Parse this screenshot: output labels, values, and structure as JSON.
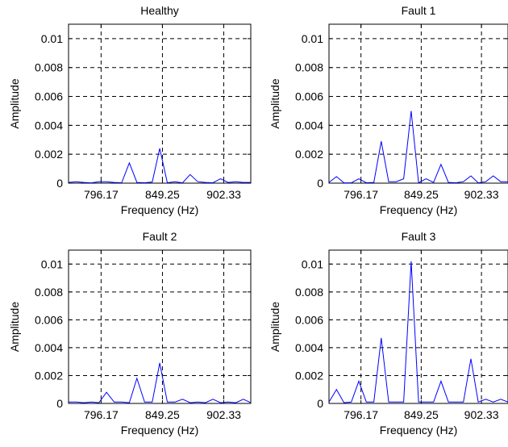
{
  "chart_data": [
    {
      "type": "line",
      "title": "Healthy",
      "xlabel": "Frequency (Hz)",
      "ylabel": "Amplitude",
      "x_ticks": [
        796.17,
        849.25,
        902.33
      ],
      "x_tick_labels": [
        "796.17",
        "849.25",
        "902.33"
      ],
      "y_ticks": [
        0,
        0.002,
        0.004,
        0.006,
        0.008,
        0.01
      ],
      "y_tick_labels": [
        "0",
        "0.002",
        "0.004",
        "0.006",
        "0.008",
        "0.01"
      ],
      "xlim": [
        768,
        925.7
      ],
      "ylim": [
        0,
        0.011
      ],
      "grid": true,
      "series": [
        {
          "color": "#0000ff",
          "x": [
            768,
            774.6,
            781.2,
            787.7,
            794.3,
            800.9,
            807.5,
            814,
            820.6,
            827.2,
            833.8,
            840.4,
            846.9,
            853.5,
            860.1,
            866.7,
            873.2,
            879.8,
            886.4,
            893,
            899.5,
            906.1,
            912.7,
            919.3,
            925.7
          ],
          "y": [
            5e-05,
            0.0001,
            5e-05,
            2e-05,
            0.0001,
            0.0001,
            5e-05,
            3e-05,
            0.0014,
            5e-05,
            3e-05,
            8e-05,
            0.0024,
            3e-05,
            0.0001,
            2e-05,
            0.0006,
            0.0001,
            5e-05,
            3e-05,
            0.0003,
            5e-05,
            0.0001,
            5e-05,
            5e-05
          ]
        }
      ]
    },
    {
      "type": "line",
      "title": "Fault 1",
      "xlabel": "Frequency (Hz)",
      "ylabel": "Amplitude",
      "x_ticks": [
        796.17,
        849.25,
        902.33
      ],
      "x_tick_labels": [
        "796.17",
        "849.25",
        "902.33"
      ],
      "y_ticks": [
        0,
        0.002,
        0.004,
        0.006,
        0.008,
        0.01
      ],
      "y_tick_labels": [
        "0",
        "0.002",
        "0.004",
        "0.006",
        "0.008",
        "0.01"
      ],
      "xlim": [
        768,
        925.7
      ],
      "ylim": [
        0,
        0.011
      ],
      "grid": true,
      "series": [
        {
          "color": "#0000ff",
          "x": [
            768,
            774.6,
            781.2,
            787.7,
            794.3,
            800.9,
            807.5,
            814,
            820.6,
            827.2,
            833.8,
            840.4,
            846.9,
            853.5,
            860.1,
            866.7,
            873.2,
            879.8,
            886.4,
            893,
            899.5,
            906.1,
            912.7,
            919.3,
            925.7
          ],
          "y": [
            5e-05,
            0.00045,
            2e-05,
            2e-05,
            0.0003,
            3e-05,
            5e-05,
            0.0029,
            0.0001,
            0.0001,
            0.0003,
            0.005,
            2e-05,
            0.0003,
            5e-05,
            0.0013,
            5e-05,
            3e-05,
            0.0001,
            0.0005,
            2e-05,
            0.0001,
            0.0005,
            0.0001,
            0.0001
          ]
        }
      ]
    },
    {
      "type": "line",
      "title": "Fault 2",
      "xlabel": "Frequency (Hz)",
      "ylabel": "Amplitude",
      "x_ticks": [
        796.17,
        849.25,
        902.33
      ],
      "x_tick_labels": [
        "796.17",
        "849.25",
        "902.33"
      ],
      "y_ticks": [
        0,
        0.002,
        0.004,
        0.006,
        0.008,
        0.01
      ],
      "y_tick_labels": [
        "0",
        "0.002",
        "0.004",
        "0.006",
        "0.008",
        "0.01"
      ],
      "xlim": [
        768,
        925.7
      ],
      "ylim": [
        0,
        0.011
      ],
      "grid": true,
      "series": [
        {
          "color": "#0000ff",
          "x": [
            768,
            774.6,
            781.2,
            787.7,
            794.3,
            800.9,
            807.5,
            814,
            820.6,
            827.2,
            833.8,
            840.4,
            846.9,
            853.5,
            860.1,
            866.7,
            873.2,
            879.8,
            886.4,
            893,
            899.5,
            906.1,
            912.7,
            919.3,
            925.7
          ],
          "y": [
            0.0001,
            0.0001,
            5e-05,
            0.0001,
            5e-05,
            0.0008,
            0.0001,
            0.0001,
            5e-05,
            0.0018,
            0.0001,
            0.0001,
            0.0029,
            0.0001,
            0.0001,
            0.0003,
            5e-05,
            0.0001,
            5e-05,
            0.0003,
            5e-05,
            0.0001,
            5e-05,
            0.0003,
            5e-05
          ]
        }
      ]
    },
    {
      "type": "line",
      "title": "Fault 3",
      "xlabel": "Frequency (Hz)",
      "ylabel": "Amplitude",
      "x_ticks": [
        796.17,
        849.25,
        902.33
      ],
      "x_tick_labels": [
        "796.17",
        "849.25",
        "902.33"
      ],
      "y_ticks": [
        0,
        0.002,
        0.004,
        0.006,
        0.008,
        0.01
      ],
      "y_tick_labels": [
        "0",
        "0.002",
        "0.004",
        "0.006",
        "0.008",
        "0.01"
      ],
      "xlim": [
        768,
        925.7
      ],
      "ylim": [
        0,
        0.011
      ],
      "grid": true,
      "series": [
        {
          "color": "#0000ff",
          "x": [
            768,
            774.6,
            781.2,
            787.7,
            794.3,
            800.9,
            807.5,
            814,
            820.6,
            827.2,
            833.8,
            840.4,
            846.9,
            853.5,
            860.1,
            866.7,
            873.2,
            879.8,
            886.4,
            893,
            899.5,
            906.1,
            912.7,
            919.3,
            925.7
          ],
          "y": [
            0.0001,
            0.001,
            5e-05,
            0.0001,
            0.0016,
            0.0001,
            0.0001,
            0.0047,
            0.0001,
            0.0001,
            0.0001,
            0.0102,
            0.0001,
            0.0001,
            0.0001,
            0.0016,
            0.0001,
            0.0001,
            0.0001,
            0.0032,
            0.0001,
            0.0003,
            0.0001,
            0.0003,
            0.0001
          ]
        }
      ]
    }
  ]
}
